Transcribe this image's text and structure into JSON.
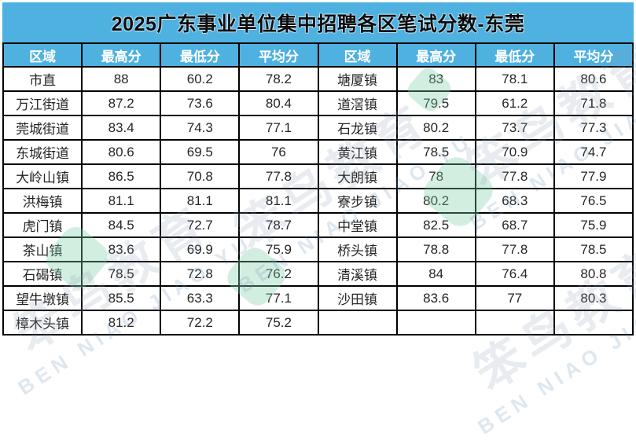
{
  "title": "2025广东事业单位集中招聘各区笔试分数-东莞",
  "colors": {
    "accent_blue": "#4FB1E0",
    "border_black": "#000000",
    "header_text": "#FFFFFF",
    "body_text": "#262626",
    "watermark_green": "#7ECDA5"
  },
  "table": {
    "headers": [
      "区域",
      "最高分",
      "最低分",
      "平均分",
      "区域",
      "最高分",
      "最低分",
      "平均分"
    ],
    "rows": [
      [
        "市直",
        "88",
        "60.2",
        "78.2",
        "塘厦镇",
        "83",
        "78.1",
        "80.6"
      ],
      [
        "万江街道",
        "87.2",
        "73.6",
        "80.4",
        "道滘镇",
        "79.5",
        "61.2",
        "71.8"
      ],
      [
        "莞城街道",
        "83.4",
        "74.3",
        "77.1",
        "石龙镇",
        "80.2",
        "73.7",
        "77.3"
      ],
      [
        "东城街道",
        "80.6",
        "69.5",
        "76",
        "黄江镇",
        "78.5",
        "70.9",
        "74.7"
      ],
      [
        "大岭山镇",
        "86.5",
        "70.8",
        "77.8",
        "大朗镇",
        "78",
        "77.8",
        "77.9"
      ],
      [
        "洪梅镇",
        "81.1",
        "81.1",
        "81.1",
        "寮步镇",
        "80.2",
        "68.3",
        "76.5"
      ],
      [
        "虎门镇",
        "84.5",
        "72.7",
        "78.7",
        "中堂镇",
        "82.5",
        "68.7",
        "75.9"
      ],
      [
        "茶山镇",
        "83.6",
        "69.9",
        "75.9",
        "桥头镇",
        "78.8",
        "77.8",
        "78.5"
      ],
      [
        "石碣镇",
        "78.5",
        "72.8",
        "76.2",
        "清溪镇",
        "84",
        "76.4",
        "80.8"
      ],
      [
        "望牛墩镇",
        "85.5",
        "63.3",
        "77.1",
        "沙田镇",
        "83.6",
        "77",
        "80.3"
      ],
      [
        "樟木头镇",
        "81.2",
        "72.2",
        "75.2",
        "",
        "",
        "",
        ""
      ]
    ]
  },
  "watermark": {
    "cn": "笨鸟教育",
    "en": "BEN NIAO JIAO YU"
  }
}
